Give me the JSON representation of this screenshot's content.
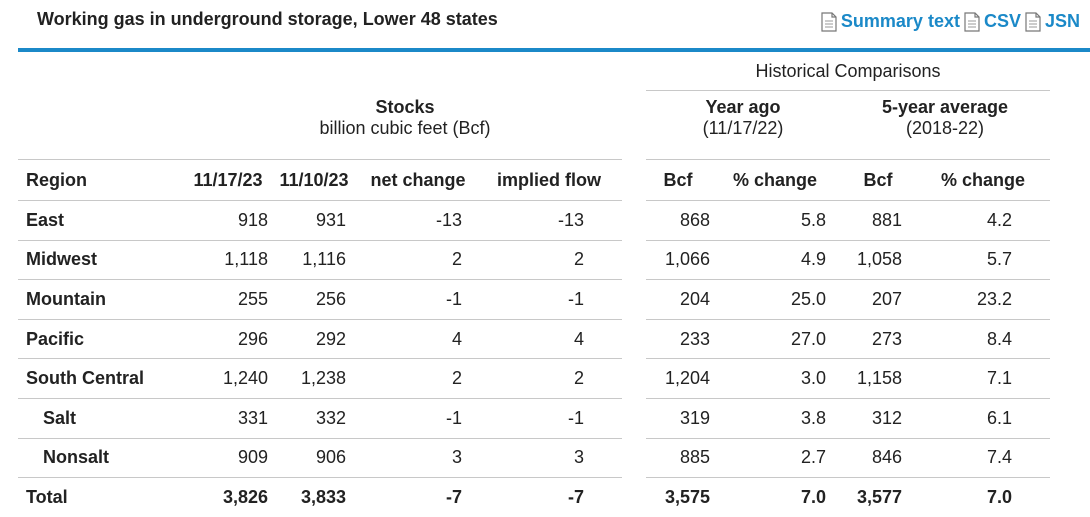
{
  "title": "Working gas in underground storage, Lower 48 states",
  "links": {
    "summary": "Summary text",
    "csv": "CSV",
    "json": "JSN"
  },
  "header": {
    "historical": "Historical Comparisons",
    "stocks": "Stocks",
    "stocks_unit": "billion cubic feet (Bcf)",
    "year_ago": "Year ago",
    "year_ago_date": "(11/17/22)",
    "five_year": "5-year average",
    "five_year_range": "(2018-22)"
  },
  "columns": [
    "Region",
    "11/17/23",
    "11/10/23",
    "net change",
    "implied flow",
    "Bcf",
    "% change",
    "Bcf",
    "% change"
  ],
  "rows": [
    [
      "East",
      "918",
      "931",
      "-13",
      "-13",
      "868",
      "5.8",
      "881",
      "4.2"
    ],
    [
      "Midwest",
      "1,118",
      "1,116",
      "2",
      "2",
      "1,066",
      "4.9",
      "1,058",
      "5.7"
    ],
    [
      "Mountain",
      "255",
      "256",
      "-1",
      "-1",
      "204",
      "25.0",
      "207",
      "23.2"
    ],
    [
      "Pacific",
      "296",
      "292",
      "4",
      "4",
      "233",
      "27.0",
      "273",
      "8.4"
    ],
    [
      "South Central",
      "1,240",
      "1,238",
      "2",
      "2",
      "1,204",
      "3.0",
      "1,158",
      "7.1"
    ],
    [
      "Salt",
      "331",
      "332",
      "-1",
      "-1",
      "319",
      "3.8",
      "312",
      "6.1"
    ],
    [
      "Nonsalt",
      "909",
      "906",
      "3",
      "3",
      "885",
      "2.7",
      "846",
      "7.4"
    ],
    [
      "Total",
      "3,826",
      "3,833",
      "-7",
      "-7",
      "3,575",
      "7.0",
      "3,577",
      "7.0"
    ]
  ],
  "colors": {
    "accent": "#1b89c8",
    "rule": "#c8c8c8"
  }
}
